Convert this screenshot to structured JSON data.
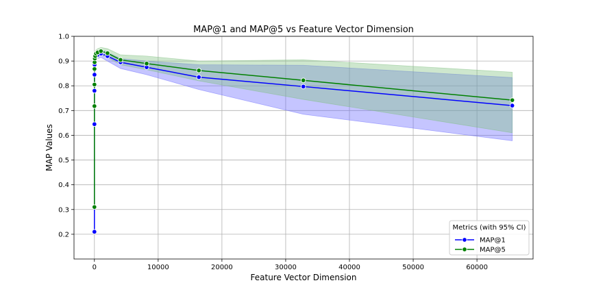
{
  "chart_data": {
    "type": "line",
    "title": "MAP@1 and MAP@5 vs Feature Vector Dimension",
    "xlabel": "Feature Vector Dimension",
    "ylabel": "MAP Values",
    "xlim": [
      -3200,
      68800
    ],
    "ylim": [
      0.1,
      1.0
    ],
    "x_ticks": [
      0,
      10000,
      20000,
      30000,
      40000,
      50000,
      60000
    ],
    "y_ticks": [
      0.2,
      0.3,
      0.4,
      0.5,
      0.6,
      0.7,
      0.8,
      0.9,
      1.0
    ],
    "y_tick_labels": [
      "0.2",
      "0.3",
      "0.4",
      "0.5",
      "0.6",
      "0.7",
      "0.8",
      "0.9",
      "1.0"
    ],
    "grid": true,
    "legend": {
      "title": "Metrics (with 95% CI)",
      "placement": "lower-right"
    },
    "x": [
      2,
      4,
      8,
      16,
      32,
      64,
      128,
      256,
      512,
      1024,
      2048,
      4096,
      8192,
      16384,
      32768,
      65536
    ],
    "series": [
      {
        "name": "MAP@1",
        "color": "#0000ff",
        "band_color": "#6666ff",
        "values": [
          0.21,
          0.645,
          0.78,
          0.845,
          0.885,
          0.9,
          0.91,
          0.92,
          0.925,
          0.93,
          0.92,
          0.895,
          0.875,
          0.835,
          0.797,
          0.72
        ],
        "ci_lower": [
          0.2,
          0.62,
          0.76,
          0.83,
          0.87,
          0.885,
          0.895,
          0.905,
          0.91,
          0.915,
          0.9,
          0.87,
          0.845,
          0.785,
          0.685,
          0.578
        ],
        "ci_upper": [
          0.22,
          0.665,
          0.8,
          0.86,
          0.9,
          0.915,
          0.925,
          0.935,
          0.94,
          0.945,
          0.935,
          0.91,
          0.9,
          0.885,
          0.883,
          0.833
        ]
      },
      {
        "name": "MAP@5",
        "color": "#008000",
        "band_color": "#7fbf7f",
        "values": [
          0.31,
          0.718,
          0.805,
          0.868,
          0.895,
          0.91,
          0.92,
          0.93,
          0.935,
          0.94,
          0.932,
          0.905,
          0.89,
          0.862,
          0.822,
          0.742
        ],
        "ci_lower": [
          0.3,
          0.7,
          0.79,
          0.855,
          0.88,
          0.895,
          0.905,
          0.915,
          0.92,
          0.925,
          0.915,
          0.885,
          0.865,
          0.82,
          0.745,
          0.61
        ],
        "ci_upper": [
          0.32,
          0.735,
          0.82,
          0.88,
          0.91,
          0.925,
          0.935,
          0.945,
          0.95,
          0.955,
          0.95,
          0.925,
          0.92,
          0.9,
          0.905,
          0.855
        ]
      }
    ]
  }
}
